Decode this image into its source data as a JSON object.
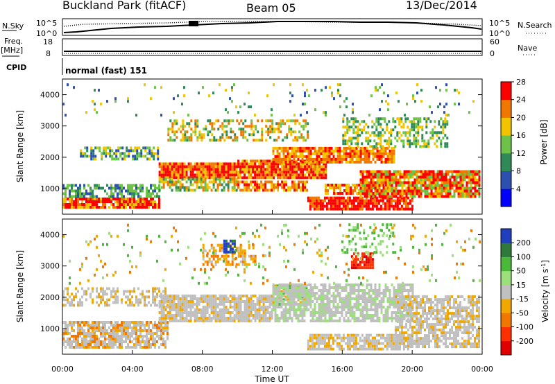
{
  "header": {
    "station": "Buckland Park (fitACF)",
    "beam": "Beam 05",
    "date": "13/Dec/2014"
  },
  "summary_panel": {
    "left_labels": {
      "nsky": "N.Sky",
      "freq": "Freq.",
      "freq_unit": "[MHz]",
      "cpid": "CPID"
    },
    "right_labels": {
      "nsearch": "N.Search",
      "nave": "Nave"
    },
    "noise_ticks_left": [
      "10^5",
      "10^0"
    ],
    "noise_ticks_right": [
      "10^5",
      "10^0"
    ],
    "freq_ticks": [
      "18",
      "8"
    ],
    "nave_ticks": [
      "60",
      "0"
    ],
    "cpid_text": "normal (fast) 151"
  },
  "chart_data": [
    {
      "type": "heatmap",
      "name": "power",
      "ylabel": "Slant Range [km]",
      "xlabel": "Time UT",
      "x_ticks": [
        "00:00",
        "04:00",
        "08:00",
        "12:00",
        "16:00",
        "20:00",
        "00:00"
      ],
      "y_ticks": [
        1000,
        2000,
        3000,
        4000
      ],
      "ylim": [
        180,
        4500
      ],
      "colorbar_label": "Power [dB]",
      "colorbar_ticks": [
        4,
        8,
        12,
        16,
        20,
        24,
        28
      ],
      "colors": [
        "#0000ff",
        "#2d4fb0",
        "#2f8a58",
        "#6ec24a",
        "#f2c400",
        "#f07800",
        "#ff0000"
      ]
    },
    {
      "type": "heatmap",
      "name": "velocity",
      "ylabel": "Slant Range [km]",
      "xlabel": "Time UT",
      "x_ticks": [
        "00:00",
        "04:00",
        "08:00",
        "12:00",
        "16:00",
        "20:00",
        "00:00"
      ],
      "y_ticks": [
        1000,
        2000,
        3000,
        4000
      ],
      "ylim": [
        180,
        4500
      ],
      "colorbar_label": "Velocity [m s^-1]",
      "colorbar_ticks": [
        200,
        100,
        50,
        15,
        -15,
        -50,
        -100,
        -200
      ],
      "colors": [
        "#1f3fbf",
        "#2e7a3a",
        "#4cb83a",
        "#9be07a",
        "#c0c0c0",
        "#f0a800",
        "#f07800",
        "#ff3000",
        "#e00000"
      ]
    }
  ]
}
